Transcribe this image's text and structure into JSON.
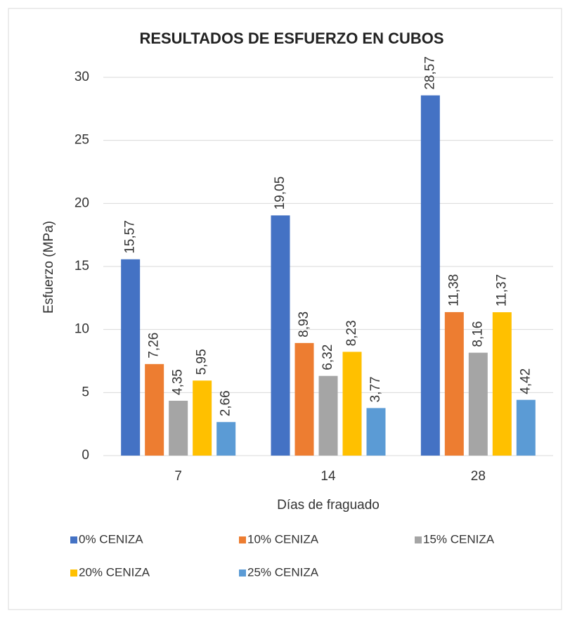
{
  "chart_data": {
    "type": "bar",
    "title": "RESULTADOS  DE ESFUERZO  EN CUBOS",
    "xlabel": "Días de fraguado",
    "ylabel": "Esfuerzo (MPa)",
    "categories": [
      "7",
      "14",
      "28"
    ],
    "ylim": [
      0,
      30
    ],
    "yticks": [
      0,
      5,
      10,
      15,
      20,
      25,
      30
    ],
    "grid": true,
    "legend": "bottom",
    "series": [
      {
        "name": "0% CENIZA",
        "color": "#4472c4",
        "values": [
          15.57,
          19.05,
          28.57
        ],
        "value_labels": [
          "15,57",
          "19,05",
          "28,57"
        ]
      },
      {
        "name": "10% CENIZA",
        "color": "#ed7d31",
        "values": [
          7.26,
          8.93,
          11.38
        ],
        "value_labels": [
          "7,26",
          "8,93",
          "11,38"
        ]
      },
      {
        "name": "15% CENIZA",
        "color": "#a5a5a5",
        "values": [
          4.35,
          6.32,
          8.16
        ],
        "value_labels": [
          "4,35",
          "6,32",
          "8,16"
        ]
      },
      {
        "name": "20% CENIZA",
        "color": "#ffc000",
        "values": [
          5.95,
          8.23,
          11.37
        ],
        "value_labels": [
          "5,95",
          "8,23",
          "11,37"
        ]
      },
      {
        "name": "25% CENIZA",
        "color": "#5b9bd5",
        "values": [
          2.66,
          3.77,
          4.42
        ],
        "value_labels": [
          "2,66",
          "3,77",
          "4,42"
        ]
      }
    ]
  }
}
